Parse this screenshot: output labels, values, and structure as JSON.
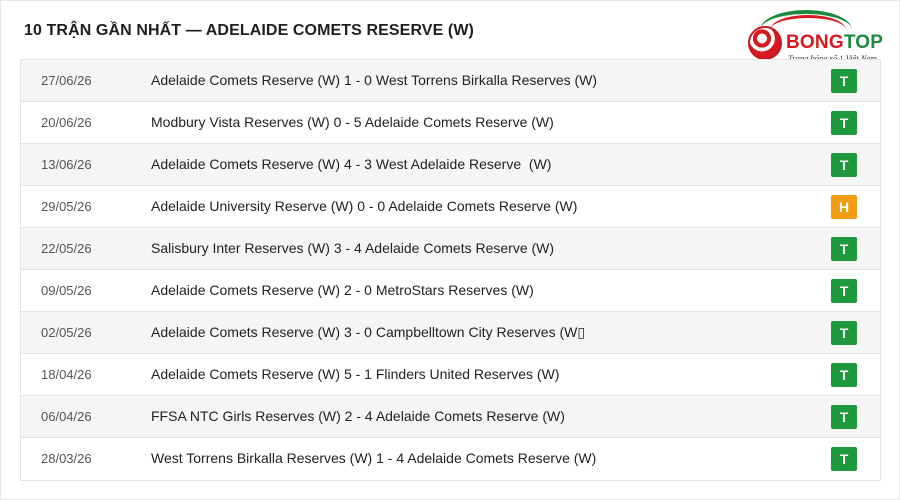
{
  "header": {
    "title": "10 TRẬN GẦN NHẤT — ADELAIDE COMETS RESERVE (W)"
  },
  "logo": {
    "brand_part1": "BONG",
    "brand_part2": "TOP",
    "tagline": "Trang bóng số 1 Việt Nam"
  },
  "colors": {
    "win": "#1e9a3e",
    "draw": "#f39c12"
  },
  "matches": [
    {
      "date": "27/06/26",
      "home": "Adelaide Comets Reserve (W)",
      "score": "1 - 0",
      "away": "West Torrens Birkalla Reserves (W)",
      "result": "T",
      "result_type": "win"
    },
    {
      "date": "20/06/26",
      "home": "Modbury Vista Reserves (W)",
      "score": "0 - 5",
      "away": "Adelaide Comets Reserve (W)",
      "result": "T",
      "result_type": "win"
    },
    {
      "date": "13/06/26",
      "home": "Adelaide Comets Reserve (W)",
      "score": "4 - 3",
      "away": "West Adelaide Reserve  (W)",
      "result": "T",
      "result_type": "win"
    },
    {
      "date": "29/05/26",
      "home": "Adelaide University Reserve (W)",
      "score": "0 - 0",
      "away": "Adelaide Comets Reserve (W)",
      "result": "H",
      "result_type": "draw"
    },
    {
      "date": "22/05/26",
      "home": "Salisbury Inter Reserves (W)",
      "score": "3 - 4",
      "away": "Adelaide Comets Reserve (W)",
      "result": "T",
      "result_type": "win"
    },
    {
      "date": "09/05/26",
      "home": "Adelaide Comets Reserve (W)",
      "score": "2 - 0",
      "away": "MetroStars Reserves (W)",
      "result": "T",
      "result_type": "win"
    },
    {
      "date": "02/05/26",
      "home": "Adelaide Comets Reserve (W)",
      "score": "3 - 0",
      "away": "Campbelltown City Reserves (W▯",
      "result": "T",
      "result_type": "win"
    },
    {
      "date": "18/04/26",
      "home": "Adelaide Comets Reserve (W)",
      "score": "5 - 1",
      "away": "Flinders United Reserves (W)",
      "result": "T",
      "result_type": "win"
    },
    {
      "date": "06/04/26",
      "home": "FFSA NTC Girls Reserves (W)",
      "score": "2 - 4",
      "away": "Adelaide Comets Reserve (W)",
      "result": "T",
      "result_type": "win"
    },
    {
      "date": "28/03/26",
      "home": "West Torrens Birkalla Reserves (W)",
      "score": "1 - 4",
      "away": "Adelaide Comets Reserve (W)",
      "result": "T",
      "result_type": "win"
    }
  ]
}
